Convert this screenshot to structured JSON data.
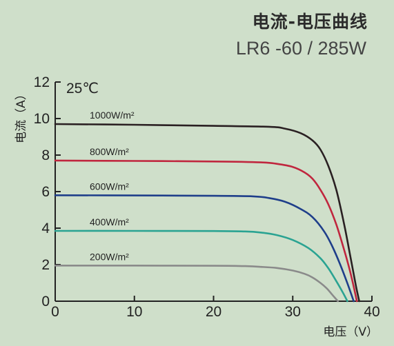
{
  "header": {
    "title": "电流-电压曲线",
    "subtitle": "LR6 -60 / 285W"
  },
  "chart_data": {
    "type": "line",
    "title": "电流-电压曲线",
    "subtitle": "LR6 -60 / 285W",
    "xlabel": "电压（V）",
    "ylabel": "电流（A）",
    "xlim": [
      0,
      40
    ],
    "ylim": [
      0,
      12
    ],
    "xticks": [
      0,
      10,
      20,
      30,
      40
    ],
    "yticks": [
      0,
      2,
      4,
      6,
      8,
      10,
      12
    ],
    "grid": false,
    "annotation": "25℃",
    "series": [
      {
        "name": "1000W/m²",
        "color": "#2a2022",
        "x": [
          0,
          10,
          20,
          27,
          29,
          31,
          32.5,
          33.5,
          34.5,
          35.5,
          36.5,
          37.3,
          38,
          38.4
        ],
        "y": [
          9.7,
          9.66,
          9.6,
          9.55,
          9.45,
          9.2,
          8.8,
          8.3,
          7.4,
          6.1,
          4.2,
          2.4,
          0.8,
          0
        ]
      },
      {
        "name": "800W/m²",
        "color": "#c0263e",
        "x": [
          0,
          10,
          20,
          26,
          28,
          30,
          31.5,
          32.5,
          33.5,
          34.5,
          35.5,
          36.5,
          37.2,
          37.7,
          38.1
        ],
        "y": [
          7.7,
          7.68,
          7.65,
          7.6,
          7.52,
          7.35,
          7.05,
          6.7,
          6.1,
          5.3,
          4.2,
          2.8,
          1.7,
          0.8,
          0
        ]
      },
      {
        "name": "600W/m²",
        "color": "#1e3e8a",
        "x": [
          0,
          10,
          20,
          25,
          27,
          29,
          31,
          32.5,
          34,
          35,
          36,
          36.8,
          37.3,
          37.7
        ],
        "y": [
          5.8,
          5.79,
          5.77,
          5.74,
          5.65,
          5.45,
          5.05,
          4.6,
          3.8,
          3.0,
          2.0,
          1.1,
          0.5,
          0
        ]
      },
      {
        "name": "400W/m²",
        "color": "#2aa392",
        "x": [
          0,
          10,
          20,
          24,
          26,
          28,
          30,
          32,
          33.5,
          34.5,
          35.5,
          36.3,
          36.9
        ],
        "y": [
          3.85,
          3.85,
          3.84,
          3.82,
          3.76,
          3.62,
          3.35,
          2.9,
          2.35,
          1.8,
          1.1,
          0.5,
          0
        ]
      },
      {
        "name": "200W/m²",
        "color": "#8a8a8a",
        "x": [
          0,
          10,
          20,
          24,
          26,
          28,
          30,
          31.5,
          32.5,
          33.5,
          34.3,
          35,
          35.7
        ],
        "y": [
          1.95,
          1.95,
          1.94,
          1.92,
          1.88,
          1.82,
          1.68,
          1.5,
          1.3,
          1.0,
          0.7,
          0.35,
          0
        ]
      }
    ]
  }
}
